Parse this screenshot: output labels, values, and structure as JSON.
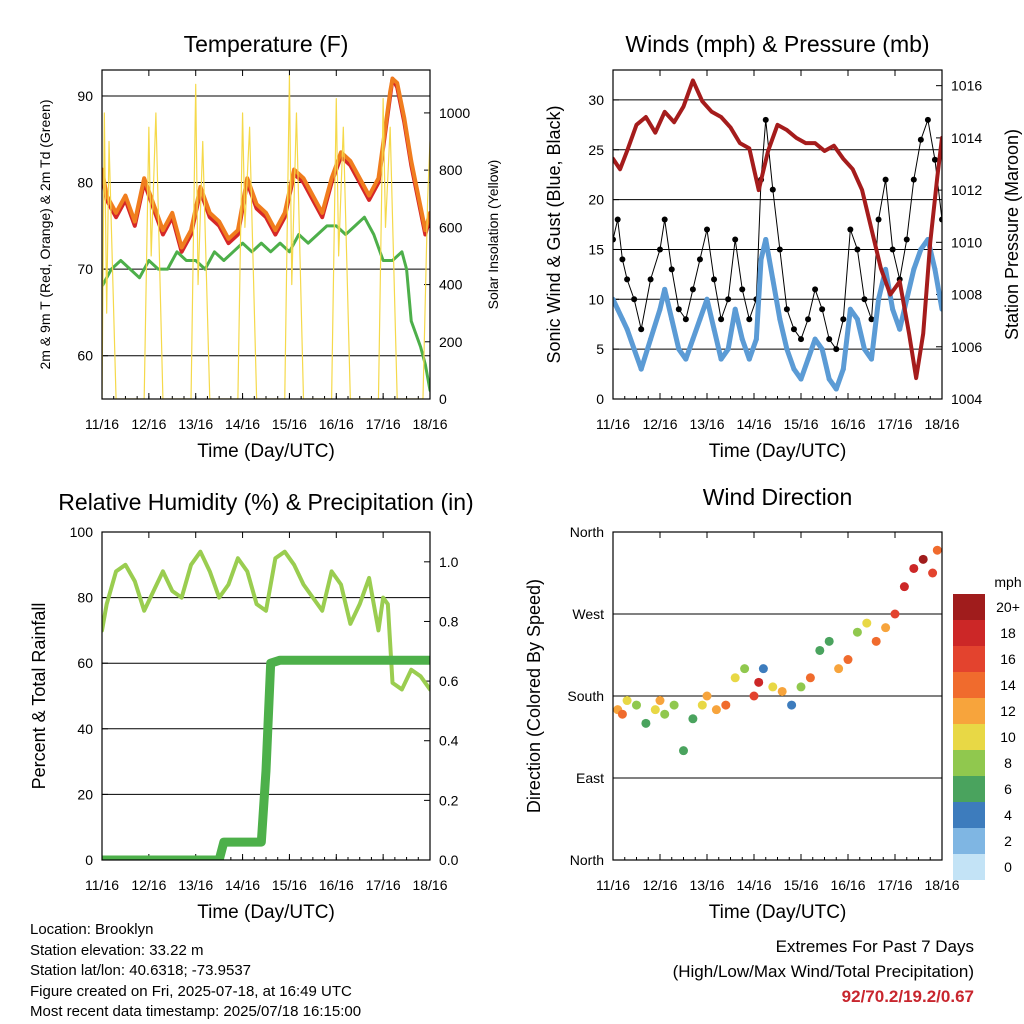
{
  "chart_data": [
    {
      "type": "line",
      "title": "Temperature (F)",
      "xlabel": "Time (Day/UTC)",
      "ylabel": "2m & 9m T (Red, Orange) & 2m Td (Green)",
      "y2label": "Solar Insolation (Yellow)",
      "x_ticks": [
        "11/16",
        "12/16",
        "13/16",
        "14/16",
        "15/16",
        "16/16",
        "17/16",
        "18/16"
      ],
      "xlim": [
        0,
        7
      ],
      "ylim": [
        55,
        93
      ],
      "y_ticks": [
        60,
        70,
        80,
        90
      ],
      "y2lim": [
        0,
        1150
      ],
      "y2_ticks": [
        0,
        200,
        400,
        600,
        800,
        1000
      ],
      "grid": "horizontal",
      "series": [
        {
          "color": "#d62728",
          "axis": "left",
          "x": [
            0,
            0.1,
            0.3,
            0.5,
            0.7,
            0.9,
            1.1,
            1.3,
            1.5,
            1.7,
            1.9,
            2.1,
            2.3,
            2.5,
            2.7,
            2.9,
            3.1,
            3.3,
            3.5,
            3.7,
            3.9,
            4.1,
            4.3,
            4.5,
            4.7,
            4.9,
            5.1,
            5.3,
            5.5,
            5.7,
            5.9,
            6.05,
            6.15,
            6.2,
            6.3,
            6.45,
            6.6,
            6.75,
            6.9,
            7.0
          ],
          "y": [
            81,
            78,
            76,
            78,
            75,
            80,
            77,
            74,
            76,
            72,
            74,
            79,
            76,
            75,
            73,
            74,
            80,
            77,
            76,
            74,
            76,
            81,
            80,
            78,
            76,
            80,
            83,
            82,
            80,
            78,
            80,
            86,
            90,
            92,
            91,
            87,
            82,
            78,
            74,
            76
          ]
        },
        {
          "color": "#f07d1e",
          "axis": "left",
          "x": [
            0,
            0.1,
            0.3,
            0.5,
            0.7,
            0.9,
            1.1,
            1.3,
            1.5,
            1.7,
            1.9,
            2.1,
            2.3,
            2.5,
            2.7,
            2.9,
            3.1,
            3.3,
            3.5,
            3.7,
            3.9,
            4.1,
            4.3,
            4.5,
            4.7,
            4.9,
            5.1,
            5.3,
            5.5,
            5.7,
            5.9,
            6.05,
            6.15,
            6.2,
            6.3,
            6.45,
            6.6,
            6.75,
            6.9,
            7.0
          ],
          "y": [
            81.5,
            78.5,
            76.5,
            78.5,
            75.5,
            80.5,
            77.5,
            74.5,
            76.5,
            72.5,
            74.5,
            79.5,
            76.5,
            75.5,
            73.5,
            74.5,
            80.5,
            77.5,
            76.5,
            74.5,
            76.5,
            81.5,
            80.5,
            78.5,
            76.5,
            80.5,
            83.5,
            82.5,
            80.5,
            78.5,
            80.5,
            86.5,
            90.5,
            92,
            91.5,
            87.5,
            82.5,
            78.5,
            74.5,
            76.5
          ]
        },
        {
          "color": "#4daf4a",
          "axis": "left",
          "x": [
            0,
            0.2,
            0.4,
            0.6,
            0.8,
            1.0,
            1.2,
            1.4,
            1.6,
            1.8,
            2.0,
            2.2,
            2.4,
            2.6,
            2.8,
            3.0,
            3.2,
            3.4,
            3.6,
            3.8,
            4.0,
            4.2,
            4.4,
            4.6,
            4.8,
            5.0,
            5.2,
            5.4,
            5.6,
            5.8,
            6.0,
            6.2,
            6.4,
            6.5,
            6.6,
            6.8,
            6.9,
            7.0
          ],
          "y": [
            68,
            70,
            71,
            70,
            69,
            71,
            70,
            70,
            72,
            71,
            71,
            70,
            72,
            71,
            72,
            73,
            72,
            73,
            72,
            73,
            72,
            74,
            73,
            74,
            75,
            75,
            74,
            75,
            76,
            74,
            71,
            71,
            72,
            70,
            64,
            61,
            59,
            56
          ]
        },
        {
          "color": "#f5d94a",
          "axis": "right",
          "x": [
            0,
            0.05,
            0.1,
            0.15,
            0.3,
            0.9,
            1.0,
            1.05,
            1.15,
            1.3,
            1.9,
            2.0,
            2.05,
            2.15,
            2.3,
            2.9,
            3.0,
            3.05,
            3.15,
            3.3,
            3.9,
            4.0,
            4.05,
            4.15,
            4.3,
            4.9,
            5.0,
            5.05,
            5.15,
            5.3,
            5.9,
            6.0,
            6.05,
            6.15,
            6.3,
            6.85,
            6.95,
            7.0
          ],
          "y": [
            0,
            1000,
            300,
            900,
            0,
            0,
            950,
            500,
            1000,
            0,
            0,
            1100,
            400,
            900,
            0,
            0,
            1000,
            600,
            950,
            0,
            0,
            1130,
            400,
            1000,
            0,
            0,
            1050,
            500,
            950,
            0,
            0,
            1050,
            600,
            950,
            0,
            0,
            700,
            900
          ]
        }
      ]
    },
    {
      "type": "scatter",
      "title": "Winds (mph) & Pressure (mb)",
      "xlabel": "Time (Day/UTC)",
      "ylabel": "Sonic Wind & Gust (Blue, Black)",
      "y2label": "Station Pressure (Maroon)",
      "x_ticks": [
        "11/16",
        "12/16",
        "13/16",
        "14/16",
        "15/16",
        "16/16",
        "17/16",
        "18/16"
      ],
      "xlim": [
        0,
        7
      ],
      "ylim": [
        0,
        33
      ],
      "y_ticks": [
        0,
        5,
        10,
        15,
        20,
        25,
        30
      ],
      "y2lim": [
        1004,
        1016.6
      ],
      "y2_ticks": [
        1004,
        1006,
        1008,
        1010,
        1012,
        1014,
        1016
      ],
      "grid": "horizontal",
      "series": [
        {
          "color": "#000000",
          "axis": "left",
          "x": [
            0,
            0.1,
            0.2,
            0.3,
            0.45,
            0.6,
            0.8,
            1.0,
            1.1,
            1.25,
            1.4,
            1.55,
            1.7,
            1.85,
            2.0,
            2.15,
            2.3,
            2.45,
            2.6,
            2.75,
            2.9,
            3.05,
            3.15,
            3.25,
            3.4,
            3.55,
            3.7,
            3.85,
            4.0,
            4.15,
            4.3,
            4.45,
            4.6,
            4.75,
            4.9,
            5.05,
            5.2,
            5.35,
            5.5,
            5.65,
            5.8,
            5.95,
            6.1,
            6.25,
            6.4,
            6.55,
            6.7,
            6.85,
            7.0
          ],
          "y": [
            16,
            18,
            14,
            12,
            10,
            7,
            12,
            15,
            18,
            13,
            9,
            8,
            11,
            14,
            17,
            12,
            8,
            10,
            16,
            11,
            8,
            10,
            22,
            28,
            21,
            15,
            9,
            7,
            6,
            8,
            11,
            9,
            6,
            5,
            8,
            17,
            15,
            10,
            8,
            18,
            22,
            15,
            12,
            16,
            22,
            26,
            28,
            24,
            18
          ]
        },
        {
          "color": "#5b9bd5",
          "axis": "left",
          "x": [
            0,
            0.1,
            0.2,
            0.3,
            0.45,
            0.6,
            0.8,
            1.0,
            1.1,
            1.25,
            1.4,
            1.55,
            1.7,
            1.85,
            2.0,
            2.15,
            2.3,
            2.45,
            2.6,
            2.75,
            2.9,
            3.05,
            3.15,
            3.25,
            3.4,
            3.55,
            3.7,
            3.85,
            4.0,
            4.15,
            4.3,
            4.45,
            4.6,
            4.75,
            4.9,
            5.05,
            5.2,
            5.35,
            5.5,
            5.65,
            5.8,
            5.95,
            6.1,
            6.25,
            6.4,
            6.55,
            6.7,
            6.85,
            7.0
          ],
          "y": [
            10,
            9,
            8,
            7,
            5,
            3,
            6,
            9,
            11,
            8,
            5,
            4,
            6,
            8,
            10,
            7,
            4,
            5,
            9,
            6,
            4,
            6,
            14,
            16,
            12,
            8,
            5,
            3,
            2,
            4,
            6,
            5,
            2,
            1,
            3,
            9,
            8,
            5,
            4,
            10,
            13,
            9,
            7,
            10,
            13,
            15,
            16,
            13,
            9
          ]
        },
        {
          "color": "#a51c1c",
          "axis": "right",
          "x": [
            0,
            0.15,
            0.3,
            0.5,
            0.7,
            0.9,
            1.1,
            1.3,
            1.5,
            1.7,
            1.9,
            2.1,
            2.3,
            2.5,
            2.7,
            2.9,
            3.1,
            3.3,
            3.5,
            3.7,
            3.9,
            4.1,
            4.3,
            4.5,
            4.7,
            4.9,
            5.1,
            5.3,
            5.5,
            5.7,
            5.9,
            6.1,
            6.3,
            6.45,
            6.6,
            6.75,
            6.9,
            7.0
          ],
          "y": [
            1013.2,
            1012.8,
            1013.5,
            1014.5,
            1014.8,
            1014.2,
            1015.0,
            1014.6,
            1015.2,
            1016.2,
            1015.4,
            1015.0,
            1014.8,
            1014.4,
            1013.8,
            1013.6,
            1012.0,
            1013.5,
            1014.5,
            1014.3,
            1014.0,
            1013.8,
            1013.8,
            1013.5,
            1013.7,
            1013.2,
            1012.8,
            1012.0,
            1010.5,
            1009.0,
            1008.0,
            1008.5,
            1006.5,
            1004.8,
            1006.5,
            1010.0,
            1012.5,
            1014.0
          ]
        }
      ]
    },
    {
      "type": "line",
      "title": "Relative Humidity (%) & Precipitation (in)",
      "xlabel": "Time (Day/UTC)",
      "ylabel": "Percent & Total Rainfall",
      "x_ticks": [
        "11/16",
        "12/16",
        "13/16",
        "14/16",
        "15/16",
        "16/16",
        "17/16",
        "18/16"
      ],
      "xlim": [
        0,
        7
      ],
      "ylim": [
        0,
        100
      ],
      "y_ticks": [
        0,
        20,
        40,
        60,
        80,
        100
      ],
      "y2lim": [
        0,
        1.1
      ],
      "y2_ticks": [
        "0.0",
        "0.2",
        "0.4",
        "0.6",
        "0.8",
        "1.0"
      ],
      "grid": "horizontal",
      "series": [
        {
          "color": "#9acd50",
          "axis": "left",
          "x": [
            0,
            0.1,
            0.3,
            0.5,
            0.7,
            0.9,
            1.1,
            1.3,
            1.5,
            1.7,
            1.9,
            2.1,
            2.3,
            2.5,
            2.7,
            2.9,
            3.1,
            3.3,
            3.5,
            3.7,
            3.9,
            4.1,
            4.3,
            4.5,
            4.7,
            4.9,
            5.1,
            5.3,
            5.5,
            5.7,
            5.9,
            6.0,
            6.1,
            6.2,
            6.4,
            6.6,
            6.8,
            7.0
          ],
          "y": [
            70,
            78,
            88,
            90,
            85,
            76,
            82,
            88,
            82,
            80,
            90,
            94,
            88,
            80,
            84,
            92,
            88,
            78,
            76,
            92,
            94,
            90,
            84,
            80,
            76,
            88,
            84,
            72,
            78,
            86,
            70,
            80,
            78,
            54,
            52,
            58,
            56,
            52
          ]
        },
        {
          "color": "#4db04a",
          "axis": "right",
          "x": [
            0,
            0.5,
            1.0,
            1.5,
            2.0,
            2.5,
            2.6,
            2.8,
            3.0,
            3.2,
            3.4,
            3.5,
            3.6,
            3.8,
            4.0,
            4.5,
            5.0,
            5.5,
            6.0,
            6.5,
            7.0
          ],
          "y": [
            0,
            0,
            0,
            0,
            0,
            0,
            0.06,
            0.06,
            0.06,
            0.06,
            0.06,
            0.3,
            0.66,
            0.67,
            0.67,
            0.67,
            0.67,
            0.67,
            0.67,
            0.67,
            0.67
          ]
        }
      ]
    },
    {
      "type": "scatter",
      "title": "Wind Direction",
      "xlabel": "Time (Day/UTC)",
      "ylabel": "Direction (Colored By Speed)",
      "x_ticks": [
        "11/16",
        "12/16",
        "13/16",
        "14/16",
        "15/16",
        "16/16",
        "17/16",
        "18/16"
      ],
      "xlim": [
        0,
        7
      ],
      "ylim": [
        0,
        360
      ],
      "y_tick_labels": [
        "North",
        "East",
        "South",
        "West",
        "North"
      ],
      "y_tick_values": [
        0,
        90,
        180,
        270,
        360
      ],
      "grid": "horizontal",
      "legend": {
        "title": "mph",
        "labels": [
          "20+",
          "18",
          "16",
          "14",
          "12",
          "10",
          "8",
          "6",
          "4",
          "2",
          "0"
        ],
        "colors": [
          "#a01c1c",
          "#cc2727",
          "#e3432e",
          "#f06b2d",
          "#f7a43c",
          "#e8d845",
          "#90c84e",
          "#4aa35e",
          "#3d7cbd",
          "#7fb6e3",
          "#c3e3f6"
        ]
      },
      "series": [
        {
          "x": [
            0.1,
            0.2,
            0.3,
            0.5,
            0.7,
            0.9,
            1.0,
            1.1,
            1.3,
            1.5,
            1.7,
            1.9,
            2.0,
            2.2,
            2.4,
            2.6,
            2.8,
            3.0,
            3.1,
            3.2,
            3.4,
            3.6,
            3.8,
            4.0,
            4.2,
            4.4,
            4.6,
            4.8,
            5.0,
            5.2,
            5.4,
            5.6,
            5.8,
            6.0,
            6.2,
            6.4,
            6.6,
            6.8,
            6.9
          ],
          "y": [
            165,
            160,
            175,
            170,
            150,
            165,
            175,
            160,
            170,
            120,
            155,
            170,
            180,
            165,
            170,
            200,
            210,
            180,
            195,
            210,
            190,
            185,
            170,
            190,
            200,
            230,
            240,
            210,
            220,
            250,
            260,
            240,
            255,
            270,
            300,
            320,
            330,
            315,
            340
          ],
          "speed": [
            12,
            14,
            10,
            8,
            6,
            9,
            11,
            7,
            8,
            5,
            6,
            10,
            12,
            11,
            14,
            9,
            7,
            16,
            18,
            4,
            10,
            12,
            3,
            8,
            14,
            6,
            5,
            11,
            14,
            8,
            9,
            13,
            12,
            16,
            18,
            17,
            19,
            15,
            13
          ]
        }
      ]
    }
  ],
  "info": {
    "location": "Location: Brooklyn",
    "elevation": "Station elevation: 33.22 m",
    "latlon": "Station lat/lon: 40.6318; -73.9537",
    "created": "Figure created on Fri, 2025-07-18, at 16:49 UTC",
    "recent": "Most recent data timestamp: 2025/07/18 16:15:00"
  },
  "extremes": {
    "line1": "Extremes For Past 7 Days",
    "line2": "(High/Low/Max Wind/Total Precipitation)",
    "values": "92/70.2/19.2/0.67"
  }
}
